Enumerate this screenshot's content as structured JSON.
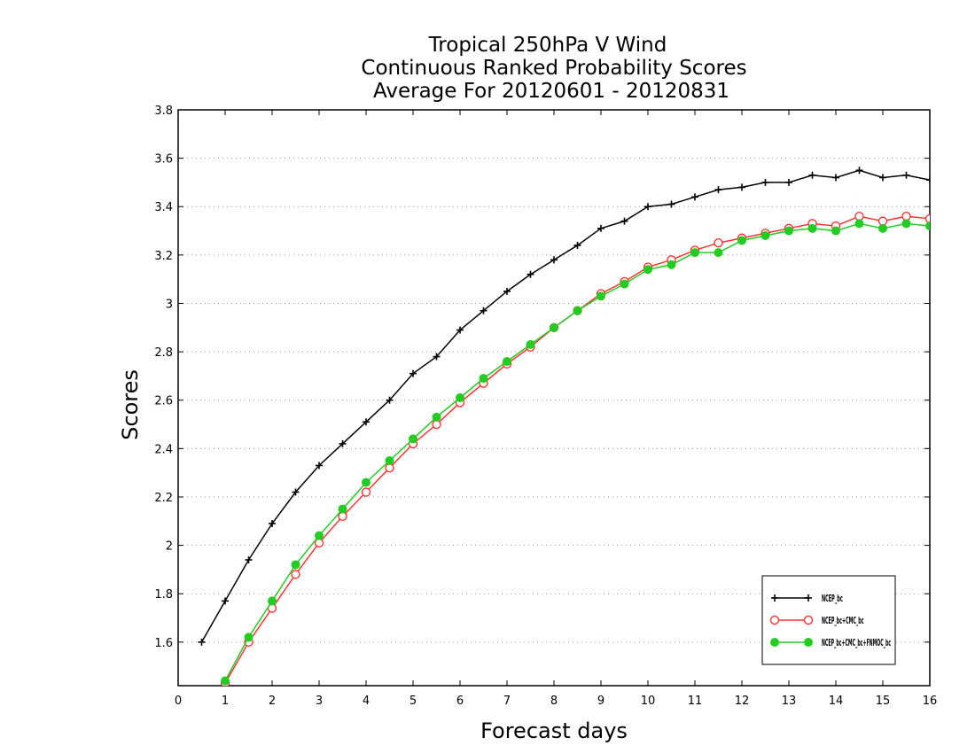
{
  "chart_data": {
    "type": "line",
    "title_lines": [
      "Tropical 250hPa V Wind",
      "Continuous Ranked Probability Scores",
      "Average For 20120601 - 20120831"
    ],
    "xlabel": "Forecast days",
    "ylabel": "Scores",
    "xlim": [
      0,
      16
    ],
    "ylim": [
      1.42,
      3.8
    ],
    "x_ticks": [
      0,
      1,
      2,
      3,
      4,
      5,
      6,
      7,
      8,
      9,
      10,
      11,
      12,
      13,
      14,
      15,
      16
    ],
    "y_ticks": [
      1.6,
      1.8,
      2.0,
      2.2,
      2.4,
      2.6,
      2.8,
      3.0,
      3.2,
      3.4,
      3.6,
      3.8
    ],
    "y_tick_labels": [
      "1.6",
      "1.8",
      "2",
      "2.2",
      "2.4",
      "2.6",
      "2.8",
      "3",
      "3.2",
      "3.4",
      "3.6",
      "3.8"
    ],
    "grid": "horizontal dotted",
    "legend_position": "bottom-right",
    "x": [
      0.5,
      1,
      1.5,
      2,
      2.5,
      3,
      3.5,
      4,
      4.5,
      5,
      5.5,
      6,
      6.5,
      7,
      7.5,
      8,
      8.5,
      9,
      9.5,
      10,
      10.5,
      11,
      11.5,
      12,
      12.5,
      13,
      13.5,
      14,
      14.5,
      15,
      15.5,
      16
    ],
    "series": [
      {
        "name": "NCEP_bc",
        "color": "#000000",
        "marker": "plus",
        "values": [
          1.6,
          1.77,
          1.94,
          2.09,
          2.22,
          2.33,
          2.42,
          2.51,
          2.6,
          2.71,
          2.78,
          2.89,
          2.97,
          3.05,
          3.12,
          3.18,
          3.24,
          3.31,
          3.34,
          3.4,
          3.41,
          3.44,
          3.47,
          3.48,
          3.5,
          3.5,
          3.53,
          3.52,
          3.55,
          3.52,
          3.53,
          3.51
        ]
      },
      {
        "name": "NCEP_bc+CMC_bc",
        "color": "#ff3333",
        "marker": "open-circle",
        "values": [
          null,
          1.43,
          1.6,
          1.74,
          1.88,
          2.01,
          2.12,
          2.22,
          2.32,
          2.42,
          2.5,
          2.59,
          2.67,
          2.75,
          2.82,
          2.9,
          2.97,
          3.04,
          3.09,
          3.15,
          3.18,
          3.22,
          3.25,
          3.27,
          3.29,
          3.31,
          3.33,
          3.32,
          3.36,
          3.34,
          3.36,
          3.35
        ]
      },
      {
        "name": "NCEP_bc+CMC_bc+FNMOC_bc",
        "color": "#22cc22",
        "marker": "filled-circle",
        "values": [
          null,
          1.44,
          1.62,
          1.77,
          1.92,
          2.04,
          2.15,
          2.26,
          2.35,
          2.44,
          2.53,
          2.61,
          2.69,
          2.76,
          2.83,
          2.9,
          2.97,
          3.03,
          3.08,
          3.14,
          3.16,
          3.21,
          3.21,
          3.26,
          3.28,
          3.3,
          3.31,
          3.3,
          3.33,
          3.31,
          3.33,
          3.32
        ]
      }
    ]
  }
}
